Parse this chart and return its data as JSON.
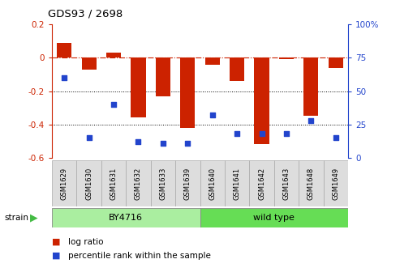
{
  "title": "GDS93 / 2698",
  "categories": [
    "GSM1629",
    "GSM1630",
    "GSM1631",
    "GSM1632",
    "GSM1633",
    "GSM1639",
    "GSM1640",
    "GSM1641",
    "GSM1642",
    "GSM1643",
    "GSM1648",
    "GSM1649"
  ],
  "log_ratio": [
    0.09,
    -0.07,
    0.03,
    -0.36,
    -0.23,
    -0.42,
    -0.04,
    -0.14,
    -0.52,
    -0.01,
    -0.35,
    -0.06
  ],
  "percentile_rank": [
    60,
    15,
    40,
    12,
    11,
    11,
    32,
    18,
    18,
    18,
    28,
    15
  ],
  "ylim_left": [
    -0.6,
    0.2
  ],
  "ylim_right": [
    0,
    100
  ],
  "bar_color": "#cc2200",
  "dot_color": "#2244cc",
  "hline_positions": [
    -0.2,
    -0.4
  ],
  "groups": [
    {
      "label": "BY4716",
      "start": 0,
      "end": 6,
      "color": "#aaeea0"
    },
    {
      "label": "wild type",
      "start": 6,
      "end": 12,
      "color": "#66dd55"
    }
  ],
  "strain_label": "strain",
  "legend_bar_label": "log ratio",
  "legend_dot_label": "percentile rank within the sample",
  "tick_label_color_left": "#cc2200",
  "tick_label_color_right": "#2244cc",
  "yticks_left": [
    -0.6,
    -0.4,
    -0.2,
    0.0,
    0.2
  ],
  "yticks_right": [
    0,
    25,
    50,
    75,
    100
  ],
  "ytick_labels_left": [
    "-0.6",
    "-0.4",
    "-0.2",
    "0",
    "0.2"
  ],
  "ytick_labels_right": [
    "0",
    "25",
    "50",
    "75",
    "100%"
  ]
}
